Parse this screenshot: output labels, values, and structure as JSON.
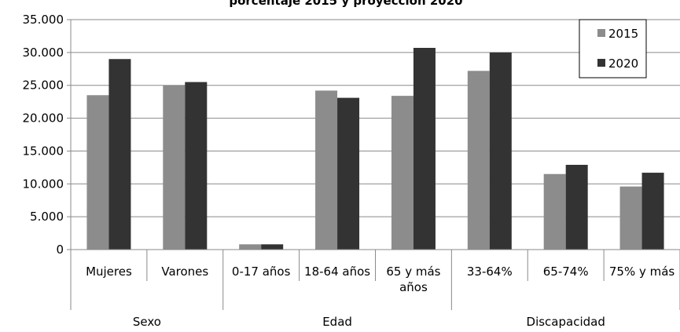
{
  "chart_data": {
    "type": "bar",
    "title": "porcentaje 2015 y proyección 2020",
    "ylim": [
      0,
      35000
    ],
    "y_ticks": [
      "0",
      "5.000",
      "10.000",
      "15.000",
      "20.000",
      "25.000",
      "30.000",
      "35.000"
    ],
    "grid": true,
    "legend_position": "top-right",
    "categories": [
      {
        "label": "Mujeres",
        "lines": [
          "Mujeres"
        ]
      },
      {
        "label": "Varones",
        "lines": [
          "Varones"
        ]
      },
      {
        "label": "0-17 años",
        "lines": [
          "0-17 años"
        ]
      },
      {
        "label": "18-64 años",
        "lines": [
          "18-64 años"
        ]
      },
      {
        "label": "65 y más años",
        "lines": [
          "65 y más",
          "años"
        ]
      },
      {
        "label": "33-64%",
        "lines": [
          "33-64%"
        ]
      },
      {
        "label": "65-74%",
        "lines": [
          "65-74%"
        ]
      },
      {
        "label": "75% y más",
        "lines": [
          "75% y más"
        ]
      }
    ],
    "groups": [
      {
        "label": "Sexo",
        "span": [
          0,
          1
        ]
      },
      {
        "label": "Edad",
        "span": [
          2,
          4
        ]
      },
      {
        "label": "Discapacidad",
        "span": [
          5,
          7
        ]
      }
    ],
    "series": [
      {
        "name": "2015",
        "color": "#8c8c8c",
        "values": [
          23500,
          25000,
          800,
          24200,
          23400,
          27200,
          11500,
          9600
        ]
      },
      {
        "name": "2020",
        "color": "#333333",
        "values": [
          29000,
          25500,
          800,
          23100,
          30700,
          30000,
          12900,
          11700
        ]
      }
    ]
  }
}
